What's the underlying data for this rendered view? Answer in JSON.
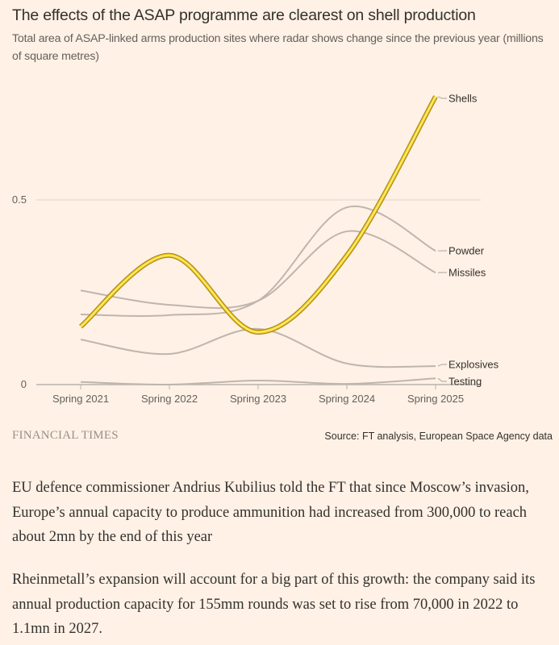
{
  "header": {
    "title": "The effects of the ASAP programme are clearest on shell production",
    "subtitle": "Total area of ASAP-linked arms production sites where radar shows change since the previous year (millions of square metres)"
  },
  "footer": {
    "logo": "FINANCIAL TIMES",
    "source": "Source: FT analysis, European Space Agency data"
  },
  "article": {
    "paragraphs": [
      "EU defence commissioner Andrius Kubilius told the FT that since Moscow’s invasion, Europe’s annual capacity to produce ammunition had increased from 300,000 to reach about 2mn by the end of this year",
      "Rheinmetall’s expansion will account for a big part of this growth: the company said its annual production capacity for 155mm rounds was set to rise from 70,000 in 2022 to 1.1mn in 2027."
    ]
  },
  "chart_data": {
    "type": "line",
    "title": "The effects of the ASAP programme are clearest on shell production",
    "subtitle": "Total area of ASAP-linked arms production sites where radar shows change since the previous year (millions of square metres)",
    "xlabel": "",
    "ylabel": "",
    "categories": [
      "Spring 2021",
      "Spring 2022",
      "Spring 2023",
      "Spring 2024",
      "Spring 2025"
    ],
    "ylim": [
      0,
      0.8
    ],
    "yticks": [
      {
        "value": 0,
        "label": "0"
      },
      {
        "value": 0.5,
        "label": "0.5"
      }
    ],
    "grid": true,
    "legend": "direct-labels-right",
    "highlight_color": "#f2c80f",
    "muted_color": "#bfb5ad",
    "series": [
      {
        "name": "Testing",
        "values": [
          0.007,
          0.0,
          0.011,
          0.002,
          0.017
        ],
        "highlight": false
      },
      {
        "name": "Explosives",
        "values": [
          0.122,
          0.083,
          0.151,
          0.057,
          0.05
        ],
        "highlight": false
      },
      {
        "name": "Missiles",
        "values": [
          0.255,
          0.216,
          0.227,
          0.415,
          0.303
        ],
        "highlight": false
      },
      {
        "name": "Powder",
        "values": [
          0.19,
          0.188,
          0.227,
          0.48,
          0.362
        ],
        "highlight": false
      },
      {
        "name": "Shells",
        "values": [
          0.157,
          0.35,
          0.142,
          0.35,
          0.78
        ],
        "highlight": true
      }
    ]
  }
}
